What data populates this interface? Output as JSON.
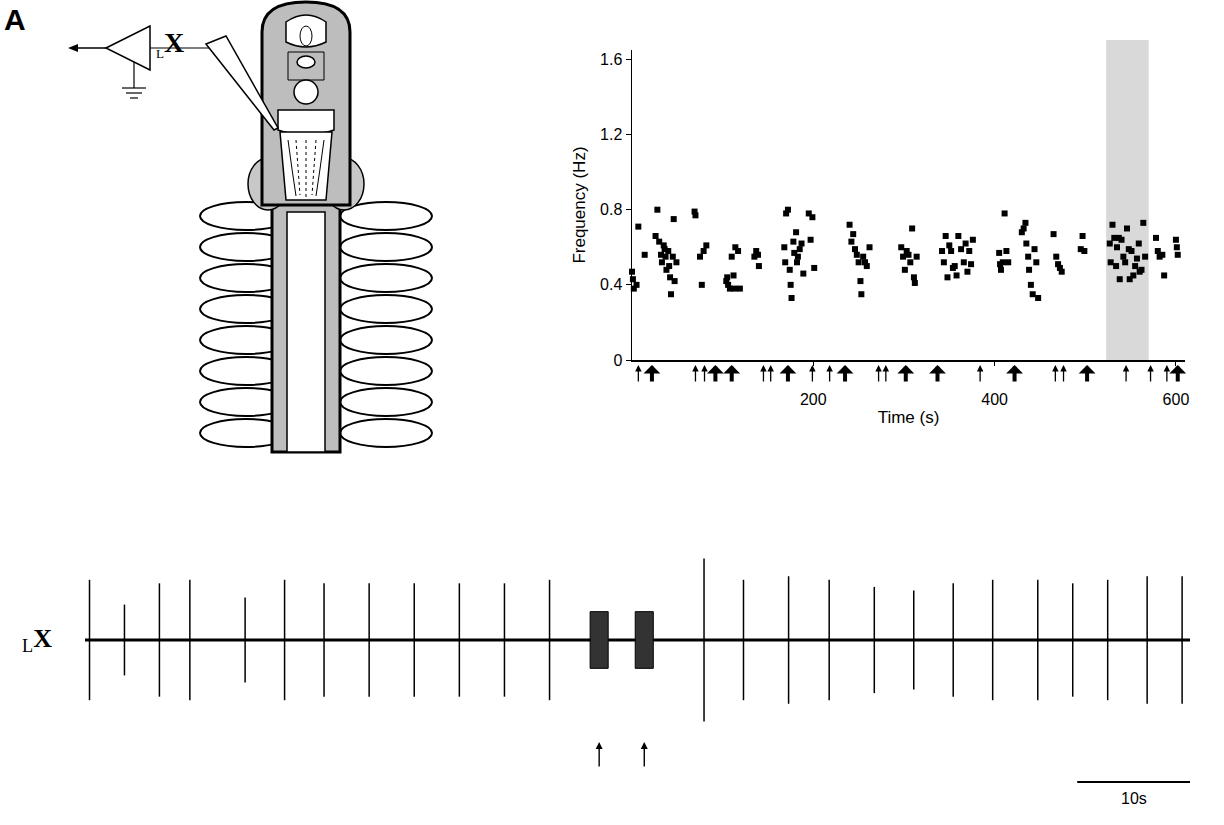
{
  "panel_label": "A",
  "schematic": {
    "electrode_label": {
      "subscript": "L",
      "text": "X"
    }
  },
  "chart_data": [
    {
      "type": "scatter",
      "marker": "square",
      "color": "#000000",
      "grid": false,
      "x_label": "Time (s)",
      "y_label": "Frequency (Hz)",
      "xlim": [
        0,
        610
      ],
      "ylim": [
        0,
        1.65
      ],
      "xticks": [
        200,
        400,
        600
      ],
      "yticks": [
        0,
        0.4,
        0.8,
        1.2,
        1.6
      ],
      "x": [
        0,
        1,
        2,
        5,
        7,
        14,
        26,
        28,
        30,
        32,
        33,
        35,
        36,
        37,
        38,
        40,
        41,
        42,
        43,
        45,
        46,
        47,
        49,
        69,
        70,
        75,
        77,
        79,
        82,
        104,
        105,
        106,
        108,
        110,
        112,
        113,
        114,
        117,
        119,
        135,
        137,
        139,
        140,
        168,
        169,
        170,
        172,
        174,
        175,
        176,
        178,
        179,
        181,
        182,
        183,
        185,
        187,
        189,
        195,
        197,
        199,
        201,
        240,
        242,
        244,
        246,
        248,
        250,
        252,
        253,
        255,
        257,
        259,
        262,
        297,
        299,
        301,
        303,
        305,
        307,
        309,
        311,
        312,
        314,
        342,
        344,
        346,
        348,
        350,
        352,
        354,
        356,
        358,
        360,
        363,
        366,
        368,
        370,
        372,
        374,
        376,
        405,
        406,
        407,
        409,
        411,
        413,
        415,
        430,
        432,
        434,
        435,
        437,
        438,
        440,
        442,
        444,
        446,
        448,
        465,
        468,
        470,
        472,
        474,
        495,
        497,
        499,
        527,
        528,
        530,
        532,
        534,
        535,
        537,
        538,
        540,
        542,
        544,
        546,
        548,
        549,
        551,
        553,
        555,
        557,
        559,
        560,
        562,
        564,
        566,
        578,
        580,
        582,
        585,
        587,
        600,
        601,
        602
      ],
      "values": [
        0.47,
        0.43,
        0.38,
        0.4,
        0.71,
        0.56,
        0.66,
        0.8,
        0.63,
        0.56,
        0.52,
        0.61,
        0.59,
        0.55,
        0.48,
        0.58,
        0.5,
        0.44,
        0.35,
        0.55,
        0.75,
        0.42,
        0.52,
        0.79,
        0.77,
        0.55,
        0.4,
        0.58,
        0.61,
        0.42,
        0.44,
        0.4,
        0.38,
        0.55,
        0.45,
        0.38,
        0.6,
        0.58,
        0.38,
        0.55,
        0.58,
        0.56,
        0.5,
        0.6,
        0.52,
        0.78,
        0.8,
        0.48,
        0.4,
        0.33,
        0.63,
        0.57,
        0.68,
        0.52,
        0.55,
        0.59,
        0.62,
        0.46,
        0.78,
        0.64,
        0.76,
        0.49,
        0.72,
        0.63,
        0.67,
        0.59,
        0.56,
        0.52,
        0.42,
        0.35,
        0.55,
        0.52,
        0.5,
        0.6,
        0.6,
        0.55,
        0.48,
        0.58,
        0.56,
        0.52,
        0.7,
        0.44,
        0.41,
        0.55,
        0.58,
        0.52,
        0.66,
        0.44,
        0.61,
        0.58,
        0.49,
        0.5,
        0.45,
        0.66,
        0.59,
        0.52,
        0.62,
        0.47,
        0.58,
        0.51,
        0.64,
        0.57,
        0.51,
        0.48,
        0.52,
        0.78,
        0.58,
        0.52,
        0.68,
        0.7,
        0.73,
        0.62,
        0.55,
        0.48,
        0.4,
        0.35,
        0.59,
        0.52,
        0.33,
        0.67,
        0.55,
        0.51,
        0.49,
        0.47,
        0.59,
        0.66,
        0.58,
        0.62,
        0.52,
        0.72,
        0.65,
        0.5,
        0.6,
        0.65,
        0.43,
        0.64,
        0.55,
        0.52,
        0.7,
        0.59,
        0.43,
        0.58,
        0.45,
        0.5,
        0.54,
        0.62,
        0.47,
        0.48,
        0.73,
        0.55,
        0.65,
        0.58,
        0.55,
        0.56,
        0.45,
        0.64,
        0.6,
        0.56
      ],
      "shaded": {
        "x": [
          523,
          570
        ],
        "color": "#d9d9d9"
      },
      "stimuli": {
        "thin": [
          7,
          70,
          80,
          145,
          153,
          199,
          218,
          272,
          280,
          384,
          467,
          476,
          545,
          572,
          590
        ],
        "thick": [
          22,
          92,
          110,
          172,
          235,
          302,
          337,
          422,
          502,
          602
        ]
      }
    },
    {
      "type": "trace",
      "tick_labels": false,
      "color": "#000000",
      "label": {
        "subscript": "L",
        "text": "X"
      },
      "xlim": [
        0,
        98
      ],
      "ylim": [
        -1.2,
        1.2
      ],
      "spikes": {
        "x": [
          0.4,
          3.5,
          6.6,
          9.3,
          14.2,
          17.7,
          21.2,
          25.2,
          29.2,
          33.2,
          37.2,
          41.2,
          54.9,
          58.4,
          62.4,
          66.0,
          70.0,
          73.5,
          77.0,
          80.5,
          84.5,
          87.6,
          90.7,
          94.2,
          97.3
        ],
        "amplitudes": [
          0.85,
          0.5,
          0.8,
          0.85,
          0.6,
          0.85,
          0.8,
          0.8,
          0.8,
          0.8,
          0.8,
          0.85,
          1.15,
          0.85,
          0.9,
          0.85,
          0.75,
          0.7,
          0.8,
          0.85,
          0.85,
          0.8,
          0.85,
          0.9,
          0.9
        ]
      },
      "bursts": {
        "start": [
          44.8,
          48.8
        ],
        "end": [
          46.4,
          50.4
        ],
        "amplitudes": [
          0.4,
          0.4
        ]
      },
      "stimuli": [
        45.6,
        49.6
      ],
      "scale_bar": {
        "length": 10,
        "label": "10s"
      }
    }
  ]
}
